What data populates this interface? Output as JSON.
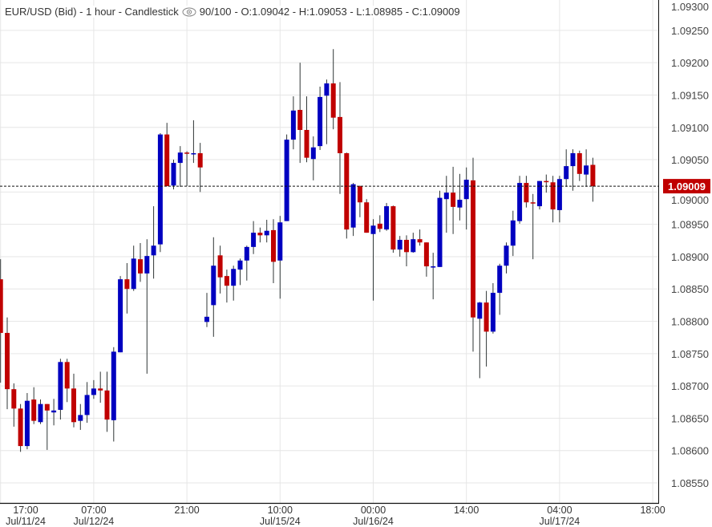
{
  "header": {
    "symbol": "EUR/USD (Bid) - 1 hour - Candlestick",
    "visibility_icon": "eye-icon",
    "count": "90/100",
    "ohlc": "- O:1.09042 - H:1.09053 - L:1.08985 - C:1.09009"
  },
  "colors": {
    "up": "#0000c0",
    "down": "#c00000",
    "wick": "#2f3636",
    "grid": "#e6e6e6",
    "last_price_bg": "#c00000"
  },
  "chart_data": {
    "type": "candlestick",
    "title": "EUR/USD (Bid) - 1 hour - Candlestick",
    "ylim": [
      1.08519,
      1.09297
    ],
    "y_ticks": [
      "1.08550",
      "1.08600",
      "1.08650",
      "1.08700",
      "1.08750",
      "1.08800",
      "1.08850",
      "1.08900",
      "1.08950",
      "1.09000",
      "1.09050",
      "1.09100",
      "1.09150",
      "1.09200",
      "1.09250",
      "1.09300"
    ],
    "x_ticks": [
      {
        "bar": 0,
        "time": "17:00",
        "date": "Jul/11/24"
      },
      {
        "bar": 14,
        "time": "07:00",
        "date": "Jul/12/24"
      },
      {
        "bar": 28,
        "time": "21:00",
        "date": ""
      },
      {
        "bar": 42,
        "time": "10:00",
        "date": "Jul/15/24"
      },
      {
        "bar": 56,
        "time": "00:00",
        "date": "Jul/16/24"
      },
      {
        "bar": 70,
        "time": "14:00",
        "date": ""
      },
      {
        "bar": 84,
        "time": "04:00",
        "date": "Jul/17/24"
      },
      {
        "bar": 98,
        "time": "18:00",
        "date": ""
      }
    ],
    "last_price": "1.09009",
    "candles": [
      [
        1.08865,
        1.08896,
        1.08705,
        1.08782
      ],
      [
        1.08782,
        1.08806,
        1.08664,
        1.08695
      ],
      [
        1.08695,
        1.08704,
        1.08637,
        1.08665
      ],
      [
        1.08665,
        1.08672,
        1.08598,
        1.08607
      ],
      [
        1.08607,
        1.08689,
        1.08602,
        1.08677
      ],
      [
        1.08679,
        1.08698,
        1.08641,
        1.08646
      ],
      [
        1.08644,
        1.08679,
        1.08641,
        1.08672
      ],
      [
        1.08672,
        1.08672,
        1.08601,
        1.08662
      ],
      [
        1.08659,
        1.0868,
        1.08639,
        1.08662
      ],
      [
        1.08663,
        1.08742,
        1.08648,
        1.08737
      ],
      [
        1.08737,
        1.08742,
        1.08675,
        1.08696
      ],
      [
        1.08696,
        1.08719,
        1.08636,
        1.08644
      ],
      [
        1.08646,
        1.08672,
        1.08632,
        1.08655
      ],
      [
        1.08655,
        1.08706,
        1.08643,
        1.08686
      ],
      [
        1.08686,
        1.08709,
        1.0868,
        1.08696
      ],
      [
        1.08696,
        1.08722,
        1.08674,
        1.08693
      ],
      [
        1.08693,
        1.08722,
        1.08629,
        1.08648
      ],
      [
        1.08647,
        1.0876,
        1.08614,
        1.08753
      ],
      [
        1.08752,
        1.0887,
        1.08752,
        1.08865
      ],
      [
        1.08865,
        1.0889,
        1.08812,
        1.0885
      ],
      [
        1.0885,
        1.08917,
        1.08847,
        1.08897
      ],
      [
        1.08896,
        1.08921,
        1.08861,
        1.08874
      ],
      [
        1.08874,
        1.08927,
        1.08719,
        1.08901
      ],
      [
        1.08902,
        1.08978,
        1.08866,
        1.08917
      ],
      [
        1.08919,
        1.09091,
        1.08907,
        1.09089
      ],
      [
        1.09089,
        1.09107,
        1.09009,
        1.09009
      ],
      [
        1.0901,
        1.0905,
        1.09004,
        1.09045
      ],
      [
        1.09045,
        1.09071,
        1.09008,
        1.09061
      ],
      [
        1.09061,
        1.09063,
        1.09009,
        1.0906
      ],
      [
        1.09059,
        1.09111,
        1.09045,
        1.0906
      ],
      [
        1.0906,
        1.09076,
        1.09,
        1.09038
      ],
      [
        1.08799,
        1.08844,
        1.08791,
        1.08807
      ],
      [
        1.08825,
        1.0893,
        1.08776,
        1.08886
      ],
      [
        1.08902,
        1.08917,
        1.08843,
        1.08868
      ],
      [
        1.0887,
        1.0888,
        1.08829,
        1.08855
      ],
      [
        1.08855,
        1.08886,
        1.08832,
        1.08881
      ],
      [
        1.0888,
        1.08897,
        1.08856,
        1.08894
      ],
      [
        1.08894,
        1.08917,
        1.08863,
        1.08915
      ],
      [
        1.08915,
        1.08955,
        1.08904,
        1.08937
      ],
      [
        1.08937,
        1.08945,
        1.08922,
        1.08933
      ],
      [
        1.08933,
        1.08957,
        1.08922,
        1.0894
      ],
      [
        1.08941,
        1.08958,
        1.08859,
        1.08892
      ],
      [
        1.08894,
        1.08963,
        1.08835,
        1.08953
      ],
      [
        1.08955,
        1.09089,
        1.08955,
        1.09081
      ],
      [
        1.09081,
        1.09148,
        1.09066,
        1.09126
      ],
      [
        1.09127,
        1.092,
        1.09045,
        1.09096
      ],
      [
        1.09096,
        1.09148,
        1.09046,
        1.09053
      ],
      [
        1.09051,
        1.09086,
        1.09018,
        1.09069
      ],
      [
        1.09071,
        1.09163,
        1.09065,
        1.09147
      ],
      [
        1.09149,
        1.09174,
        1.09074,
        1.09168
      ],
      [
        1.09168,
        1.09221,
        1.09097,
        1.09115
      ],
      [
        1.09116,
        1.0917,
        1.08997,
        1.0906
      ],
      [
        1.0906,
        1.09061,
        1.08928,
        1.08942
      ],
      [
        1.08945,
        1.09014,
        1.08932,
        1.09012
      ],
      [
        1.09009,
        1.0901,
        1.08961,
        1.08984
      ],
      [
        1.08984,
        1.08989,
        1.08937,
        1.08937
      ],
      [
        1.08935,
        1.08958,
        1.08832,
        1.08948
      ],
      [
        1.08951,
        1.08964,
        1.08938,
        1.08943
      ],
      [
        1.08942,
        1.08983,
        1.0894,
        1.08978
      ],
      [
        1.08978,
        1.08979,
        1.08906,
        1.08911
      ],
      [
        1.08911,
        1.08932,
        1.089,
        1.08926
      ],
      [
        1.08926,
        1.08933,
        1.08885,
        1.08907
      ],
      [
        1.08907,
        1.08937,
        1.08906,
        1.08927
      ],
      [
        1.08927,
        1.08942,
        1.08917,
        1.08922
      ],
      [
        1.08922,
        1.08922,
        1.08869,
        1.08885
      ],
      [
        1.08884,
        1.08906,
        1.08834,
        1.08885
      ],
      [
        1.08884,
        1.09002,
        1.08884,
        1.08991
      ],
      [
        1.08989,
        1.09025,
        1.08937,
        1.08999
      ],
      [
        1.08999,
        1.09039,
        1.08935,
        1.08977
      ],
      [
        1.08976,
        1.09028,
        1.08956,
        1.08988
      ],
      [
        1.08989,
        1.09038,
        1.08942,
        1.09019
      ],
      [
        1.09018,
        1.09053,
        1.08753,
        1.08806
      ],
      [
        1.08804,
        1.0883,
        1.08712,
        1.08829
      ],
      [
        1.08829,
        1.08847,
        1.0873,
        1.08784
      ],
      [
        1.08784,
        1.08859,
        1.08781,
        1.08844
      ],
      [
        1.08844,
        1.08889,
        1.0881,
        1.08886
      ],
      [
        1.08886,
        1.08922,
        1.08874,
        1.08917
      ],
      [
        1.08917,
        1.08971,
        1.08901,
        1.08956
      ],
      [
        1.08955,
        1.09025,
        1.08951,
        1.09014
      ],
      [
        1.09014,
        1.09025,
        1.08976,
        1.08984
      ],
      [
        1.08984,
        1.08997,
        1.08896,
        1.08983
      ],
      [
        1.08978,
        1.09017,
        1.08973,
        1.09017
      ],
      [
        1.09017,
        1.09027,
        1.08999,
        1.09016
      ],
      [
        1.09015,
        1.09025,
        1.08953,
        1.08973
      ],
      [
        1.08972,
        1.09025,
        1.08953,
        1.0902
      ],
      [
        1.0902,
        1.09066,
        1.09008,
        1.0904
      ],
      [
        1.0904,
        1.09066,
        1.09002,
        1.0906
      ],
      [
        1.0906,
        1.09064,
        1.09017,
        1.09028
      ],
      [
        1.09027,
        1.09066,
        1.09008,
        1.09041
      ],
      [
        1.09042,
        1.09053,
        1.08985,
        1.09009
      ]
    ]
  }
}
